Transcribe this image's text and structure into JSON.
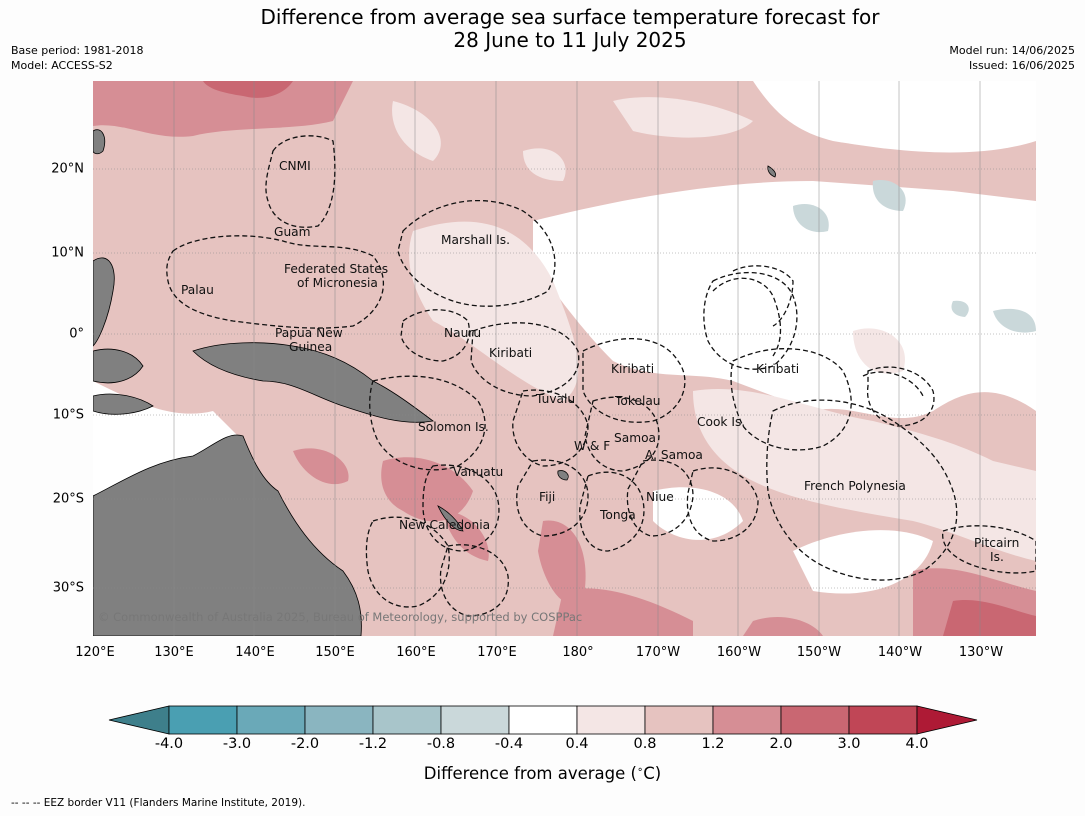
{
  "title_line1": "Difference from average sea surface temperature forecast for",
  "title_line2": "28 June to 11 July 2025",
  "base_period": "Base period: 1981-2018",
  "model": "Model: ACCESS-S2",
  "model_run": "Model run: 14/06/2025",
  "issued": "Issued: 16/06/2025",
  "latitude_labels": [
    "20°N",
    "10°N",
    "0°",
    "10°S",
    "20°S",
    "30°S"
  ],
  "longitude_labels": [
    "120°E",
    "130°E",
    "140°E",
    "150°E",
    "160°E",
    "170°E",
    "180°",
    "170°W",
    "160°W",
    "150°W",
    "140°W",
    "130°W"
  ],
  "regions": {
    "cnmi": "CNMI",
    "guam": "Guam",
    "marshall": "Marshall Is.",
    "fsm_1": "Federated States",
    "fsm_2": "of Micronesia",
    "palau": "Palau",
    "nauru": "Nauru",
    "png_1": "Papua New",
    "png_2": "Guinea",
    "kiribati_w": "Kiribati",
    "kiribati_c": "Kiribati",
    "kiribati_e": "Kiribati",
    "tuvalu": "Tuvalu",
    "tokelau": "Tokelau",
    "cook": "Cook Is.",
    "solomon": "Solomon Is.",
    "samoa": "Samoa",
    "wf": "W & F",
    "asamoa": "A. Samoa",
    "vanuatu": "Vanuatu",
    "fiji": "Fiji",
    "niue": "Niue",
    "frenchpoly": "French Polynesia",
    "tonga": "Tonga",
    "newcal": "New Caledonia",
    "pitcairn_1": "Pitcairn",
    "pitcairn_2": "Is."
  },
  "copyright": "© Commonwealth of Australia 2025, Bureau of Meteorology, supported by COSPPac",
  "colorbar": {
    "labels": [
      "-4.0",
      "-3.0",
      "-2.0",
      "-1.2",
      "-0.8",
      "-0.4",
      "0.4",
      "0.8",
      "1.2",
      "2.0",
      "3.0",
      "4.0"
    ],
    "colors": [
      "#3e7f8b",
      "#4a9fb2",
      "#6aa9b8",
      "#8ab5c0",
      "#a8c5ca",
      "#cad8da",
      "#ffffff",
      "#f4e6e5",
      "#e6c3c0",
      "#d68e95",
      "#c96772",
      "#c04656",
      "#ae1a35"
    ],
    "title": "Difference from average ($^\\circ$C)"
  },
  "colors": {
    "land": "#808080",
    "anom_02_06": "#f4e6e5",
    "anom_06_10": "#e6c3c0",
    "anom_10_16": "#d68e95",
    "anom_16_25": "#c96772",
    "cool_06_10": "#cad8da"
  },
  "footnote": "--  --  -- EEZ border V11 (Flanders Marine Institute, 2019)."
}
